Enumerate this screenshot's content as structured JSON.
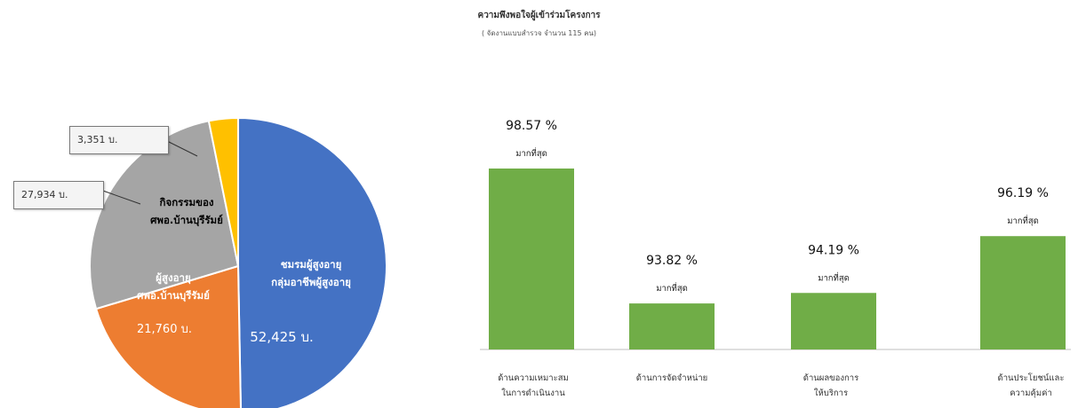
{
  "header": {
    "title": "ความพึงพอใจผู้เข้าร่วมโครงการ",
    "subtitle": "( จัดงานแบบสำรวจ จำนวน 115 คน)"
  },
  "chart_data": [
    {
      "type": "pie",
      "slices": [
        {
          "label_line1": "ชมรมผู้สูงอายุ",
          "label_line2": "กลุ่มอาชีพผู้สูงอายุ",
          "value": 52425,
          "value_text": "52,425 บ.",
          "color": "#4472C4"
        },
        {
          "label_line1": "ผู้สูงอายุ",
          "label_line2": "ศพอ.บ้านบุรีรัมย์",
          "value": 21760,
          "value_text": "21,760 บ.",
          "color": "#ED7D31"
        },
        {
          "label_line1": "กิจกรรมของ",
          "label_line2": "ศพอ.บ้านบุรีรัมย์",
          "value": 27934,
          "value_text": "27,934 บ.",
          "color": "#A5A5A5"
        },
        {
          "label_line1": "",
          "label_line2": "",
          "value": 3351,
          "value_text": "3,351 บ.",
          "color": "#FFC000"
        }
      ]
    },
    {
      "type": "bar",
      "categories": [
        [
          "ด้านความเหมาะสม",
          "ในการดำเนินงาน"
        ],
        [
          "ด้านการจัดจำหน่าย"
        ],
        [
          "ด้านผลของการ",
          "ให้บริการ"
        ],
        [
          "ด้านประโยชน์และ",
          "ความคุ้มค่า"
        ]
      ],
      "values": [
        98.57,
        93.82,
        94.19,
        96.19
      ],
      "value_labels": [
        "98.57 %",
        "93.82 %",
        "94.19 %",
        "96.19 %"
      ],
      "level_labels": [
        "มากที่สุด",
        "มากที่สุด",
        "มากที่สุด",
        "มากที่สุด"
      ],
      "bar_color": "#70AD47",
      "axis_color": "#BFBFBF"
    }
  ]
}
